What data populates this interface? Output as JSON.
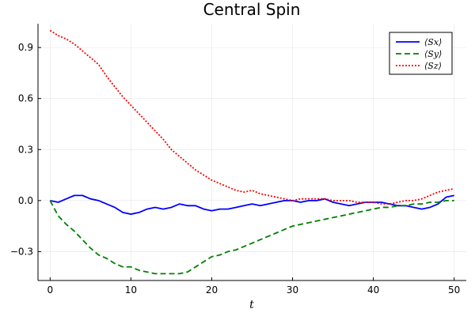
{
  "chart_data": {
    "type": "line",
    "title": "Central Spin",
    "xlabel": "t",
    "ylabel": "",
    "xlim": [
      -1.5,
      51.5
    ],
    "ylim": [
      -0.47,
      1.04
    ],
    "xticks": [
      0,
      10,
      20,
      30,
      40,
      50
    ],
    "xtick_labels": [
      "0",
      "10",
      "20",
      "30",
      "40",
      "50"
    ],
    "yticks": [
      -0.3,
      0.0,
      0.3,
      0.6,
      0.9
    ],
    "ytick_labels": [
      "−0.3",
      "0.0",
      "0.3",
      "0.6",
      "0.9"
    ],
    "grid": true,
    "legend_position": "top-right",
    "x": [
      0,
      1,
      2,
      3,
      4,
      5,
      6,
      7,
      8,
      9,
      10,
      11,
      12,
      13,
      14,
      15,
      16,
      17,
      18,
      19,
      20,
      21,
      22,
      23,
      24,
      25,
      26,
      27,
      28,
      29,
      30,
      31,
      32,
      33,
      34,
      35,
      36,
      37,
      38,
      39,
      40,
      41,
      42,
      43,
      44,
      45,
      46,
      47,
      48,
      49,
      50
    ],
    "series": [
      {
        "name": "⟨Sx⟩",
        "color": "#0000ff",
        "dash": "solid",
        "values": [
          0.0,
          -0.01,
          0.01,
          0.03,
          0.03,
          0.01,
          0.0,
          -0.02,
          -0.04,
          -0.07,
          -0.08,
          -0.07,
          -0.05,
          -0.04,
          -0.05,
          -0.04,
          -0.02,
          -0.03,
          -0.03,
          -0.05,
          -0.06,
          -0.05,
          -0.05,
          -0.04,
          -0.03,
          -0.02,
          -0.03,
          -0.02,
          -0.01,
          0.0,
          0.0,
          -0.01,
          0.0,
          0.0,
          0.01,
          -0.01,
          -0.02,
          -0.03,
          -0.02,
          -0.01,
          -0.01,
          -0.01,
          -0.02,
          -0.03,
          -0.03,
          -0.04,
          -0.05,
          -0.04,
          -0.02,
          0.02,
          0.03
        ]
      },
      {
        "name": "⟨Sy⟩",
        "color": "#008000",
        "dash": "dash",
        "values": [
          0.0,
          -0.09,
          -0.14,
          -0.18,
          -0.23,
          -0.28,
          -0.32,
          -0.34,
          -0.37,
          -0.39,
          -0.39,
          -0.41,
          -0.42,
          -0.43,
          -0.43,
          -0.43,
          -0.43,
          -0.42,
          -0.39,
          -0.36,
          -0.33,
          -0.32,
          -0.3,
          -0.29,
          -0.27,
          -0.25,
          -0.23,
          -0.21,
          -0.19,
          -0.17,
          -0.15,
          -0.14,
          -0.13,
          -0.12,
          -0.11,
          -0.1,
          -0.09,
          -0.08,
          -0.07,
          -0.06,
          -0.05,
          -0.04,
          -0.04,
          -0.03,
          -0.03,
          -0.02,
          -0.02,
          -0.01,
          -0.01,
          0.0,
          0.0
        ]
      },
      {
        "name": "⟨Sz⟩",
        "color": "#ff0000",
        "dash": "dot",
        "values": [
          1.0,
          0.97,
          0.95,
          0.92,
          0.88,
          0.84,
          0.8,
          0.73,
          0.67,
          0.61,
          0.56,
          0.51,
          0.46,
          0.41,
          0.36,
          0.3,
          0.26,
          0.22,
          0.18,
          0.15,
          0.12,
          0.1,
          0.08,
          0.06,
          0.05,
          0.06,
          0.04,
          0.03,
          0.02,
          0.01,
          0.0,
          0.01,
          0.01,
          0.01,
          0.01,
          0.0,
          0.0,
          0.0,
          -0.01,
          -0.01,
          -0.01,
          -0.02,
          -0.02,
          -0.01,
          0.0,
          0.0,
          0.01,
          0.03,
          0.05,
          0.06,
          0.07
        ]
      }
    ]
  },
  "legend": {
    "items": [
      {
        "label": "⟨Sx⟩"
      },
      {
        "label": "⟨Sy⟩"
      },
      {
        "label": "⟨Sz⟩"
      }
    ]
  }
}
